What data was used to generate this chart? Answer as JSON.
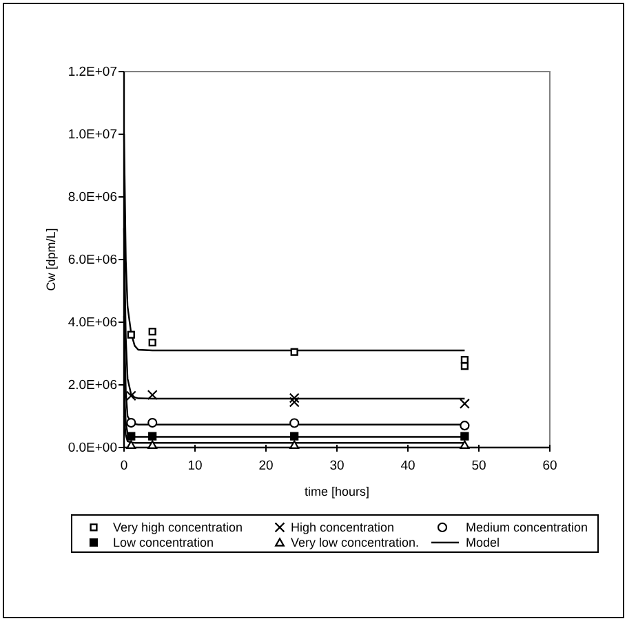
{
  "chart_data": {
    "type": "scatter",
    "xlabel": "time [hours]",
    "ylabel": "Cw [dpm/L]",
    "xlim": [
      0,
      60
    ],
    "xticks": [
      0,
      10,
      20,
      30,
      40,
      50,
      60
    ],
    "ylim": [
      0,
      12000000
    ],
    "yticks": [
      {
        "value": 0,
        "label": "0.0E+00"
      },
      {
        "value": 2000000,
        "label": "2.0E+06"
      },
      {
        "value": 4000000,
        "label": "4.0E+06"
      },
      {
        "value": 6000000,
        "label": "6.0E+06"
      },
      {
        "value": 8000000,
        "label": "8.0E+06"
      },
      {
        "value": 10000000,
        "label": "1.0E+07"
      },
      {
        "value": 12000000,
        "label": "1.2E+07"
      }
    ],
    "legend": "bottom",
    "series": [
      {
        "name": "Very high concentration",
        "marker": "square",
        "color": "#000000",
        "x": [
          1,
          4,
          4,
          24,
          48,
          48
        ],
        "values": [
          3600000,
          3700000,
          3350000,
          3050000,
          2800000,
          2600000
        ]
      },
      {
        "name": "High concentration",
        "marker": "cross",
        "color": "#000000",
        "x": [
          1,
          4,
          24,
          24,
          48
        ],
        "values": [
          1650000,
          1680000,
          1580000,
          1450000,
          1400000
        ]
      },
      {
        "name": "Medium concentration",
        "marker": "circle",
        "color": "#000000",
        "x": [
          1,
          4,
          24,
          48
        ],
        "values": [
          790000,
          790000,
          780000,
          700000
        ]
      },
      {
        "name": "Low concentration",
        "marker": "square-filled",
        "color": "#000000",
        "x": [
          1,
          4,
          24,
          48
        ],
        "values": [
          360000,
          360000,
          360000,
          360000
        ]
      },
      {
        "name": "Very low concentration.",
        "marker": "triangle",
        "color": "#000000",
        "x": [
          1,
          4,
          24,
          48
        ],
        "values": [
          80000,
          80000,
          80000,
          80000
        ]
      },
      {
        "name": "Model",
        "type": "line",
        "marker": "none",
        "color": "#000000",
        "x": [
          0,
          0.25,
          0.5,
          1,
          1.5,
          2,
          4,
          24,
          48
        ],
        "values": [
          10000000,
          6000000,
          4500000,
          3650000,
          3250000,
          3120000,
          3100000,
          3100000,
          3100000
        ]
      },
      {
        "type": "line",
        "marker": "none",
        "color": "#000000",
        "x": [
          0,
          0.25,
          0.5,
          1,
          1.5,
          2,
          4,
          24,
          48
        ],
        "values": [
          7000000,
          3500000,
          2200000,
          1700000,
          1600000,
          1570000,
          1560000,
          1560000,
          1560000
        ]
      },
      {
        "type": "line",
        "marker": "none",
        "color": "#000000",
        "x": [
          0,
          0.25,
          0.5,
          1,
          1.5,
          2,
          4,
          24,
          48
        ],
        "values": [
          4200000,
          1800000,
          1000000,
          800000,
          750000,
          730000,
          730000,
          730000,
          730000
        ]
      },
      {
        "type": "line",
        "marker": "none",
        "color": "#000000",
        "x": [
          0,
          0.25,
          0.5,
          1,
          1.5,
          2,
          4,
          24,
          48
        ],
        "values": [
          2000000,
          800000,
          450000,
          360000,
          340000,
          340000,
          340000,
          340000,
          340000
        ]
      },
      {
        "type": "line",
        "marker": "none",
        "color": "#000000",
        "x": [
          0,
          0.25,
          0.5,
          1,
          1.5,
          2,
          4,
          24,
          48
        ],
        "values": [
          1000000,
          400000,
          200000,
          160000,
          150000,
          150000,
          150000,
          150000,
          150000
        ]
      }
    ]
  }
}
